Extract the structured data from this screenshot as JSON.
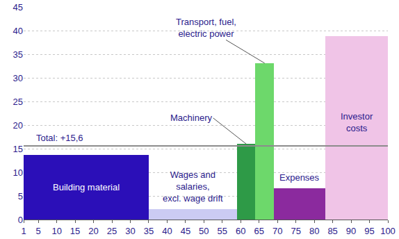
{
  "chart_data": {
    "type": "bar",
    "categories": [
      "Building material",
      "Wages and\nsalaries,\nexcl. wage drift",
      "Machinery",
      "Transport, fuel,\nelectric power",
      "Expenses",
      "Investor\ncosts"
    ],
    "x": [
      1,
      35,
      59,
      64,
      69,
      83
    ],
    "widths": [
      34,
      24,
      5,
      5,
      14,
      17
    ],
    "values": [
      13.7,
      2.2,
      16,
      33.1,
      6.6,
      38.8
    ],
    "colors": [
      "#2b0fb8",
      "#cbcbf3",
      "#2e9a47",
      "#6dd86b",
      "#8b2a9e",
      "#f0c4e7"
    ],
    "xlim": [
      1,
      100
    ],
    "xticks": [
      1,
      5,
      10,
      15,
      20,
      25,
      30,
      35,
      40,
      45,
      50,
      55,
      60,
      65,
      70,
      75,
      80,
      85,
      90,
      95,
      100
    ],
    "ylim": [
      0,
      45
    ],
    "yticks": [
      0,
      5,
      10,
      15,
      20,
      25,
      30,
      35,
      40,
      45
    ],
    "grid": true,
    "annotations": [
      {
        "text": "Total: +15,6",
        "y": 15.6
      }
    ]
  }
}
